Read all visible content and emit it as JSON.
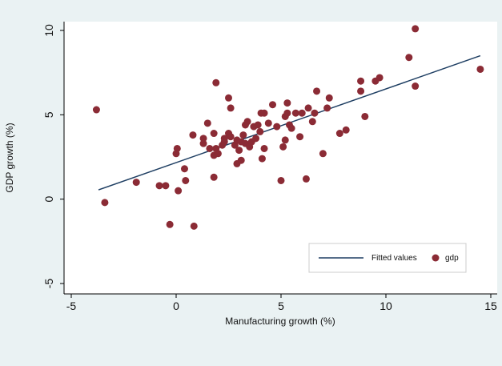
{
  "chart_data": {
    "type": "scatter",
    "xlabel": "Manufacturing growth (%)",
    "ylabel": "GDP growth (%)",
    "xlim": [
      -5,
      15
    ],
    "ylim": [
      -5,
      10
    ],
    "xticks": [
      "-5",
      "0",
      "5",
      "10",
      "15"
    ],
    "yticks": [
      "-5",
      "0",
      "5",
      "10"
    ],
    "grid": false,
    "legend_position": "bottom-right",
    "colors": {
      "points": "#8b2b35",
      "fit": "#1f3f63",
      "plot_bg": "#ffffff",
      "outer_bg": "#eaf2f3"
    },
    "fit_line": {
      "name": "Fitted values",
      "x": [
        -3.7,
        14.5
      ],
      "y": [
        0.55,
        8.5
      ]
    },
    "series": [
      {
        "name": "gdp",
        "points": [
          [
            -3.8,
            5.3
          ],
          [
            -3.4,
            -0.2
          ],
          [
            -1.9,
            1.0
          ],
          [
            -0.8,
            0.8
          ],
          [
            -0.5,
            0.8
          ],
          [
            -0.3,
            -1.5
          ],
          [
            0.0,
            2.7
          ],
          [
            0.05,
            3.0
          ],
          [
            0.1,
            0.5
          ],
          [
            0.4,
            1.8
          ],
          [
            0.45,
            1.1
          ],
          [
            0.8,
            3.8
          ],
          [
            0.85,
            -1.6
          ],
          [
            1.3,
            3.3
          ],
          [
            1.3,
            3.6
          ],
          [
            1.5,
            4.5
          ],
          [
            1.6,
            3.0
          ],
          [
            1.8,
            1.3
          ],
          [
            1.8,
            2.6
          ],
          [
            1.8,
            3.9
          ],
          [
            1.9,
            3.0
          ],
          [
            2.0,
            2.7
          ],
          [
            1.9,
            6.9
          ],
          [
            2.2,
            3.2
          ],
          [
            2.3,
            3.4
          ],
          [
            2.3,
            3.6
          ],
          [
            2.5,
            6.0
          ],
          [
            2.5,
            3.9
          ],
          [
            2.6,
            5.4
          ],
          [
            2.6,
            3.7
          ],
          [
            2.8,
            3.2
          ],
          [
            2.9,
            3.5
          ],
          [
            2.9,
            2.1
          ],
          [
            3.0,
            2.9
          ],
          [
            3.1,
            2.3
          ],
          [
            3.1,
            3.4
          ],
          [
            3.2,
            3.8
          ],
          [
            3.3,
            4.4
          ],
          [
            3.3,
            3.3
          ],
          [
            3.4,
            4.6
          ],
          [
            3.5,
            3.1
          ],
          [
            3.6,
            3.4
          ],
          [
            3.7,
            4.3
          ],
          [
            3.8,
            3.6
          ],
          [
            3.9,
            4.4
          ],
          [
            4.0,
            4.0
          ],
          [
            4.05,
            5.1
          ],
          [
            4.1,
            2.4
          ],
          [
            4.2,
            5.1
          ],
          [
            4.2,
            3.0
          ],
          [
            4.4,
            4.5
          ],
          [
            4.6,
            5.6
          ],
          [
            4.8,
            4.3
          ],
          [
            5.0,
            1.1
          ],
          [
            5.1,
            3.1
          ],
          [
            5.2,
            3.5
          ],
          [
            5.2,
            4.9
          ],
          [
            5.3,
            5.1
          ],
          [
            5.3,
            5.7
          ],
          [
            5.4,
            4.4
          ],
          [
            5.5,
            4.2
          ],
          [
            5.7,
            5.1
          ],
          [
            5.9,
            3.7
          ],
          [
            6.0,
            5.1
          ],
          [
            6.2,
            1.2
          ],
          [
            6.3,
            5.4
          ],
          [
            6.5,
            4.6
          ],
          [
            6.6,
            5.1
          ],
          [
            6.7,
            6.4
          ],
          [
            7.0,
            2.7
          ],
          [
            7.2,
            5.4
          ],
          [
            7.3,
            6.0
          ],
          [
            7.8,
            3.9
          ],
          [
            8.1,
            4.1
          ],
          [
            8.8,
            7.0
          ],
          [
            8.8,
            6.4
          ],
          [
            9.0,
            4.9
          ],
          [
            9.5,
            7.0
          ],
          [
            9.7,
            7.2
          ],
          [
            11.1,
            8.4
          ],
          [
            11.4,
            10.1
          ],
          [
            11.4,
            6.7
          ],
          [
            14.5,
            7.7
          ]
        ]
      }
    ]
  }
}
